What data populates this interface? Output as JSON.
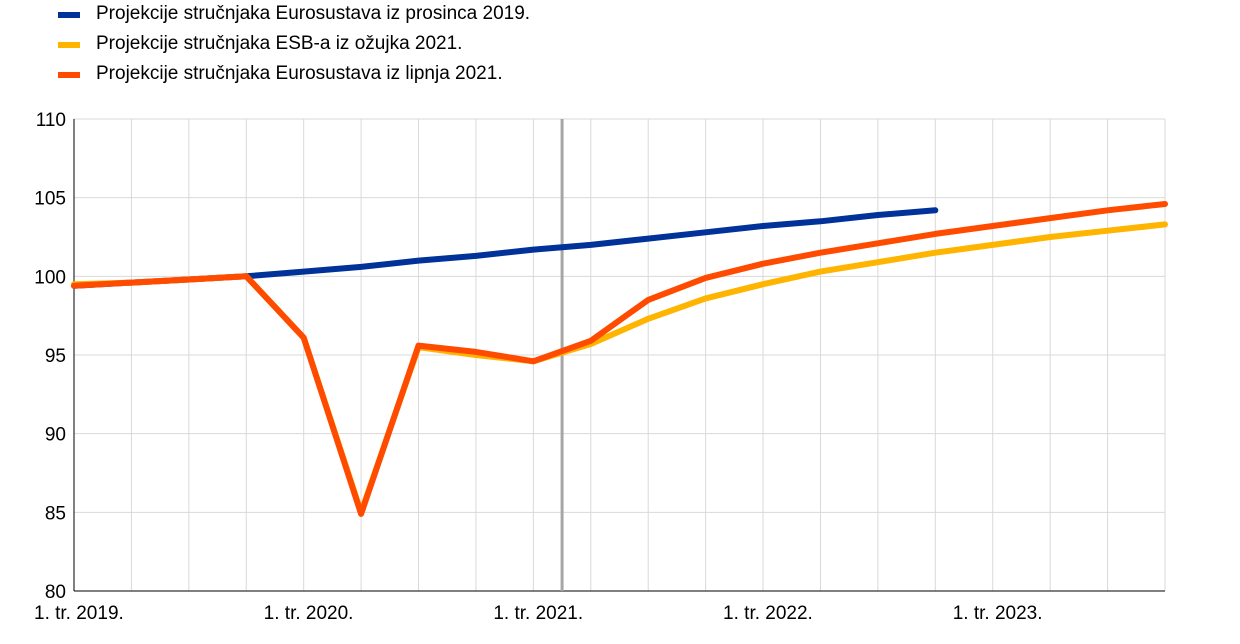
{
  "chart_data": {
    "type": "line",
    "legend_position": "top-left",
    "grid": true,
    "ylim": [
      80,
      110
    ],
    "yticks": [
      80,
      85,
      90,
      95,
      100,
      105,
      110
    ],
    "x_quarters": [
      "Q1 2019",
      "Q2 2019",
      "Q3 2019",
      "Q4 2019",
      "Q1 2020",
      "Q2 2020",
      "Q3 2020",
      "Q4 2020",
      "Q1 2021",
      "Q2 2021",
      "Q3 2021",
      "Q4 2021",
      "Q1 2022",
      "Q2 2022",
      "Q3 2022",
      "Q4 2022",
      "Q1 2023",
      "Q2 2023",
      "Q3 2023",
      "Q4 2023"
    ],
    "xtick_labels": [
      {
        "quarter": "Q1 2019",
        "label": "1. tr. 2019."
      },
      {
        "quarter": "Q1 2020",
        "label": "1. tr. 2020."
      },
      {
        "quarter": "Q1 2021",
        "label": "1. tr. 2021."
      },
      {
        "quarter": "Q1 2022",
        "label": "1. tr. 2022."
      },
      {
        "quarter": "Q1 2023",
        "label": "1. tr. 2023."
      }
    ],
    "vertical_line_quarter": "Q2 2021",
    "series": [
      {
        "name": "Projekcije stručnjaka Eurosustava iz prosinca 2019.",
        "color": "#003299",
        "values": [
          99.4,
          99.6,
          99.8,
          100.0,
          100.3,
          100.6,
          101.0,
          101.3,
          101.7,
          102.0,
          102.4,
          102.8,
          103.2,
          103.5,
          103.9,
          104.2,
          null,
          null,
          null,
          null
        ]
      },
      {
        "name": "Projekcije stručnjaka ESB-a iz ožujka 2021.",
        "color": "#FFB400",
        "values": [
          99.5,
          99.6,
          99.8,
          100.0,
          96.1,
          85.0,
          95.5,
          95.0,
          94.6,
          95.7,
          97.3,
          98.6,
          99.5,
          100.3,
          100.9,
          101.5,
          102.0,
          102.5,
          102.9,
          103.3
        ]
      },
      {
        "name": "Projekcije stručnjaka Eurosustava iz lipnja 2021.",
        "color": "#FF4B00",
        "values": [
          99.4,
          99.6,
          99.8,
          100.0,
          96.1,
          84.9,
          95.6,
          95.2,
          94.6,
          95.9,
          98.5,
          99.9,
          100.8,
          101.5,
          102.1,
          102.7,
          103.2,
          103.7,
          104.2,
          104.6
        ]
      }
    ]
  }
}
